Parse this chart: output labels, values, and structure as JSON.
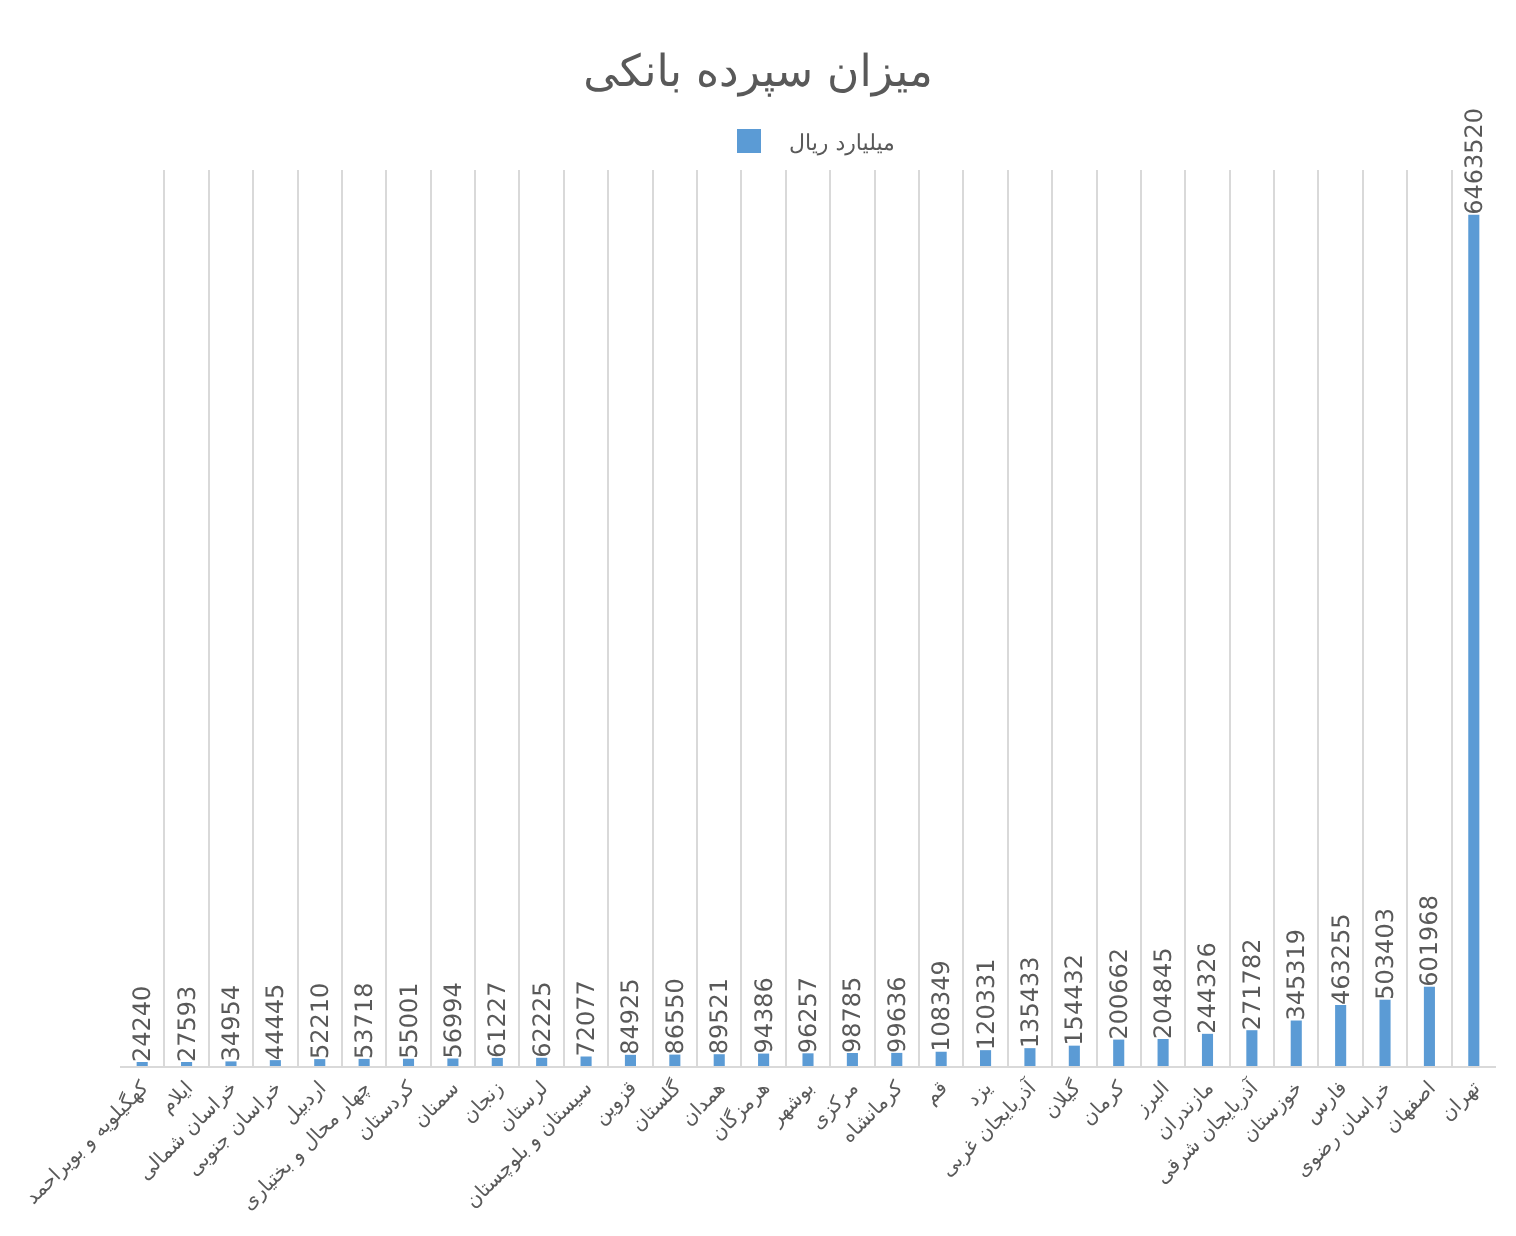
{
  "chart_data": {
    "type": "bar",
    "title": "میزان سپرده بانکی",
    "categories": [
      "کهگیلویه و بویراحمد",
      "ایلام",
      "خراسان شمالی",
      "خراسان جنوبی",
      "اردبیل",
      "چهار محال و بختیاری",
      "کردستان",
      "سمنان",
      "زنجان",
      "لرستان",
      "سیستان و بلوچستان",
      "قزوین",
      "گلستان",
      "همدان",
      "هرمزگان",
      "بوشهر",
      "مرکزی",
      "کرمانشاه",
      "قم",
      "یزد",
      "آذربایجان غربی",
      "گیلان",
      "کرمان",
      "البرز",
      "مازندران",
      "آذربایجان شرقی",
      "خوزستان",
      "فارس",
      "خراسان رضوی",
      "اصفهان",
      "تهران"
    ],
    "series": [
      {
        "name": "میلیارد ریال",
        "color": "#5b9bd5",
        "values": [
          24240,
          27593,
          34954,
          44445,
          52210,
          53718,
          55001,
          56994,
          61227,
          62225,
          72077,
          84925,
          86550,
          89521,
          94386,
          96257,
          98785,
          99636,
          108349,
          120331,
          135433,
          154432,
          200662,
          204845,
          244326,
          271782,
          345319,
          463255,
          503403,
          601968,
          6463520
        ]
      }
    ],
    "data_labels": true,
    "grid": "x",
    "legend": "top",
    "tick_labels": "x"
  }
}
